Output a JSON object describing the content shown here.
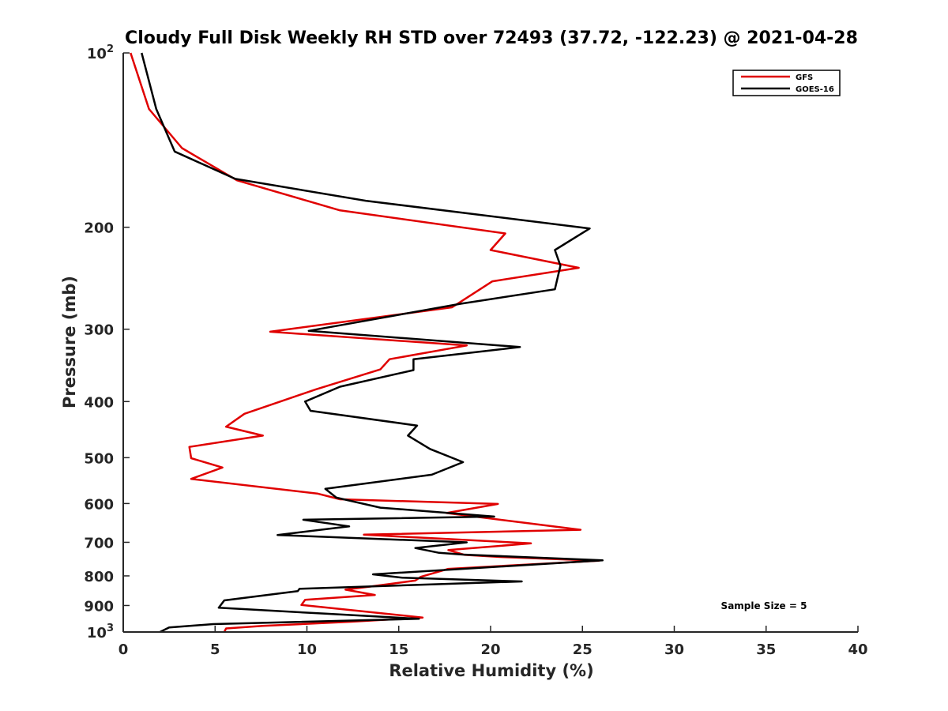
{
  "chart_data": {
    "type": "line",
    "title": "Cloudy Full Disk Weekly RH STD over 72493 (37.72, -122.23) @ 2021-04-28",
    "xlabel": "Relative Humidity (%)",
    "ylabel": "Pressure (mb)",
    "xlim": [
      0,
      40
    ],
    "ylim": [
      100,
      1000
    ],
    "yscale": "log",
    "y_reversed": true,
    "x_ticks": [
      0,
      5,
      10,
      15,
      20,
      25,
      30,
      35,
      40
    ],
    "y_ticks": [
      {
        "value": 100,
        "label": "10",
        "sup": "2"
      },
      {
        "value": 200,
        "label": "200",
        "sup": ""
      },
      {
        "value": 300,
        "label": "300",
        "sup": ""
      },
      {
        "value": 400,
        "label": "400",
        "sup": ""
      },
      {
        "value": 500,
        "label": "500",
        "sup": ""
      },
      {
        "value": 600,
        "label": "600",
        "sup": ""
      },
      {
        "value": 700,
        "label": "700",
        "sup": ""
      },
      {
        "value": 800,
        "label": "800",
        "sup": ""
      },
      {
        "value": 900,
        "label": "900",
        "sup": ""
      },
      {
        "value": 1000,
        "label": "10",
        "sup": "3"
      }
    ],
    "grid": false,
    "legend_position": "top-right",
    "annotation": "Sample Size = 5",
    "series": [
      {
        "name": "GFS",
        "color": "#e00000",
        "points": [
          [
            0.4,
            100
          ],
          [
            1.4,
            125
          ],
          [
            3.2,
            146
          ],
          [
            6.2,
            166
          ],
          [
            11.8,
            187
          ],
          [
            20.8,
            205
          ],
          [
            20.0,
            219
          ],
          [
            24.8,
            235
          ],
          [
            20.1,
            248
          ],
          [
            17.9,
            275
          ],
          [
            8.0,
            303
          ],
          [
            18.7,
            320
          ],
          [
            14.5,
            338
          ],
          [
            14.0,
            352
          ],
          [
            10.5,
            381
          ],
          [
            6.6,
            420
          ],
          [
            5.6,
            442
          ],
          [
            7.6,
            458
          ],
          [
            3.6,
            479
          ],
          [
            3.7,
            501
          ],
          [
            5.4,
            520
          ],
          [
            3.7,
            544
          ],
          [
            10.6,
            577
          ],
          [
            11.8,
            590
          ],
          [
            20.4,
            601
          ],
          [
            17.6,
            623
          ],
          [
            21.9,
            648
          ],
          [
            24.9,
            666
          ],
          [
            13.1,
            679
          ],
          [
            22.2,
            703
          ],
          [
            17.7,
            722
          ],
          [
            18.6,
            736
          ],
          [
            20.5,
            742
          ],
          [
            25.9,
            753
          ],
          [
            17.7,
            778
          ],
          [
            16.2,
            803
          ],
          [
            15.9,
            815
          ],
          [
            13.4,
            835
          ],
          [
            12.1,
            845
          ],
          [
            13.7,
            863
          ],
          [
            9.9,
            880
          ],
          [
            9.7,
            898
          ],
          [
            12.6,
            918
          ],
          [
            16.3,
            944
          ],
          [
            12.4,
            960
          ],
          [
            7.6,
            976
          ],
          [
            5.6,
            986
          ],
          [
            5.5,
            1000
          ]
        ]
      },
      {
        "name": "GOES-16",
        "color": "#000000",
        "points": [
          [
            1.0,
            100
          ],
          [
            1.8,
            125
          ],
          [
            2.8,
            148
          ],
          [
            6.1,
            165
          ],
          [
            13.2,
            180
          ],
          [
            25.4,
            201
          ],
          [
            23.5,
            219
          ],
          [
            23.8,
            233
          ],
          [
            23.5,
            256
          ],
          [
            18.4,
            271
          ],
          [
            10.1,
            302
          ],
          [
            21.6,
            322
          ],
          [
            15.8,
            338
          ],
          [
            15.8,
            353
          ],
          [
            11.8,
            377
          ],
          [
            9.9,
            400
          ],
          [
            10.2,
            415
          ],
          [
            16.0,
            440
          ],
          [
            15.5,
            458
          ],
          [
            16.7,
            483
          ],
          [
            18.5,
            509
          ],
          [
            16.8,
            535
          ],
          [
            11.0,
            566
          ],
          [
            11.6,
            586
          ],
          [
            14.0,
            610
          ],
          [
            20.2,
            632
          ],
          [
            9.8,
            640
          ],
          [
            12.3,
            657
          ],
          [
            8.4,
            680
          ],
          [
            18.7,
            700
          ],
          [
            15.9,
            716
          ],
          [
            17.2,
            730
          ],
          [
            18.5,
            735
          ],
          [
            26.1,
            752
          ],
          [
            13.6,
            795
          ],
          [
            15.2,
            806
          ],
          [
            21.7,
            818
          ],
          [
            9.6,
            842
          ],
          [
            9.5,
            850
          ],
          [
            5.5,
            882
          ],
          [
            5.2,
            908
          ],
          [
            11.1,
            930
          ],
          [
            16.1,
            949
          ],
          [
            4.9,
            969
          ],
          [
            2.5,
            982
          ],
          [
            2.0,
            1000
          ]
        ]
      }
    ]
  }
}
